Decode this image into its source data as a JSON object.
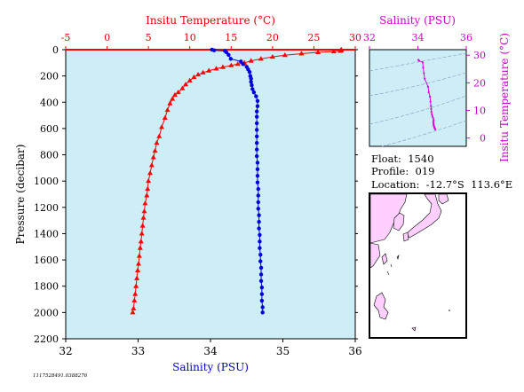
{
  "chart_data": [
    {
      "type": "scatter",
      "title": "",
      "y_axis": {
        "label": "Pressure (decibar)",
        "ticks": [
          0,
          200,
          400,
          600,
          800,
          1000,
          1200,
          1400,
          1600,
          1800,
          2000,
          2200
        ],
        "range": [
          0,
          2200
        ],
        "inverted": true
      },
      "x_axis_bottom": {
        "label": "Salinity (PSU)",
        "ticks": [
          32,
          33,
          34,
          35,
          36
        ],
        "range": [
          32,
          36
        ],
        "color": "#0000cc"
      },
      "x_axis_top": {
        "label": "Insitu Temperature (°C)",
        "ticks": [
          -5,
          0,
          5,
          10,
          15,
          20,
          25,
          30
        ],
        "range": [
          -5,
          30
        ],
        "color": "#dd0000"
      },
      "grid": false,
      "background": "#cdeef7",
      "series": [
        {
          "quantity": "temperature",
          "axis": "top",
          "color": "#ff0000",
          "marker": "triangle",
          "points": [
            [
              28.3,
              0
            ],
            [
              28.3,
              5
            ],
            [
              28.2,
              10
            ],
            [
              27.4,
              14
            ],
            [
              25.5,
              20
            ],
            [
              23.5,
              30
            ],
            [
              21.5,
              42
            ],
            [
              20,
              55
            ],
            [
              18.6,
              70
            ],
            [
              17.4,
              85
            ],
            [
              16.6,
              100
            ],
            [
              15.8,
              110
            ],
            [
              15,
              120
            ],
            [
              14,
              133
            ],
            [
              13.2,
              145
            ],
            [
              12.3,
              160
            ],
            [
              11.6,
              175
            ],
            [
              11,
              190
            ],
            [
              10.5,
              210
            ],
            [
              10,
              235
            ],
            [
              9.5,
              265
            ],
            [
              9.1,
              295
            ],
            [
              8.6,
              325
            ],
            [
              8.2,
              345
            ],
            [
              7.9,
              375
            ],
            [
              7.6,
              410
            ],
            [
              7.3,
              460
            ],
            [
              7,
              520
            ],
            [
              6.6,
              590
            ],
            [
              6.3,
              660
            ],
            [
              6,
              710
            ],
            [
              5.8,
              770
            ],
            [
              5.6,
              820
            ],
            [
              5.4,
              880
            ],
            [
              5.2,
              940
            ],
            [
              5,
              1000
            ],
            [
              4.9,
              1060
            ],
            [
              4.8,
              1110
            ],
            [
              4.6,
              1170
            ],
            [
              4.5,
              1230
            ],
            [
              4.4,
              1280
            ],
            [
              4.3,
              1340
            ],
            [
              4.2,
              1400
            ],
            [
              4.1,
              1460
            ],
            [
              4,
              1510
            ],
            [
              3.9,
              1570
            ],
            [
              3.8,
              1630
            ],
            [
              3.7,
              1680
            ],
            [
              3.6,
              1740
            ],
            [
              3.5,
              1800
            ],
            [
              3.4,
              1860
            ],
            [
              3.3,
              1910
            ],
            [
              3.2,
              1970
            ],
            [
              3.1,
              2000
            ]
          ]
        },
        {
          "quantity": "salinity",
          "axis": "bottom",
          "color": "#0000dd",
          "marker": "circle",
          "points": [
            [
              34.02,
              0
            ],
            [
              34.05,
              5
            ],
            [
              34.2,
              10
            ],
            [
              34.22,
              20
            ],
            [
              34.25,
              40
            ],
            [
              34.28,
              70
            ],
            [
              34.42,
              90
            ],
            [
              34.45,
              110
            ],
            [
              34.5,
              130
            ],
            [
              34.52,
              150
            ],
            [
              34.54,
              170
            ],
            [
              34.55,
              200
            ],
            [
              34.56,
              220
            ],
            [
              34.56,
              245
            ],
            [
              34.57,
              270
            ],
            [
              34.58,
              300
            ],
            [
              34.6,
              325
            ],
            [
              34.63,
              355
            ],
            [
              34.65,
              390
            ],
            [
              34.65,
              430
            ],
            [
              34.64,
              470
            ],
            [
              34.64,
              510
            ],
            [
              34.64,
              560
            ],
            [
              34.64,
              610
            ],
            [
              34.64,
              660
            ],
            [
              34.64,
              710
            ],
            [
              34.64,
              760
            ],
            [
              34.64,
              810
            ],
            [
              34.65,
              860
            ],
            [
              34.65,
              910
            ],
            [
              34.65,
              960
            ],
            [
              34.65,
              1010
            ],
            [
              34.66,
              1060
            ],
            [
              34.66,
              1110
            ],
            [
              34.66,
              1160
            ],
            [
              34.66,
              1210
            ],
            [
              34.67,
              1260
            ],
            [
              34.67,
              1310
            ],
            [
              34.67,
              1360
            ],
            [
              34.68,
              1410
            ],
            [
              34.68,
              1460
            ],
            [
              34.68,
              1510
            ],
            [
              34.69,
              1560
            ],
            [
              34.69,
              1610
            ],
            [
              34.7,
              1660
            ],
            [
              34.7,
              1710
            ],
            [
              34.7,
              1760
            ],
            [
              34.71,
              1810
            ],
            [
              34.71,
              1860
            ],
            [
              34.71,
              1910
            ],
            [
              34.72,
              1960
            ],
            [
              34.72,
              2000
            ]
          ]
        }
      ]
    },
    {
      "type": "scatter",
      "title": "",
      "x_axis": {
        "label": "Salinity (PSU)",
        "ticks": [
          32,
          34,
          36
        ],
        "range": [
          32,
          36
        ],
        "color": "#cc00cc"
      },
      "y_axis": {
        "label": "Insitu Temperature (°C)",
        "ticks": [
          0,
          10,
          20,
          30
        ],
        "range": [
          -3,
          32
        ],
        "color": "#cc00cc"
      },
      "background": "#cdeef7",
      "series": [
        {
          "color": "#dd00dd",
          "marker": "dot",
          "points": [
            [
              34.02,
              28.3
            ],
            [
              34.05,
              28
            ],
            [
              34.2,
              27.4
            ],
            [
              34.22,
              25.5
            ],
            [
              34.25,
              23.5
            ],
            [
              34.28,
              21.5
            ],
            [
              34.42,
              18.6
            ],
            [
              34.45,
              16.6
            ],
            [
              34.5,
              15
            ],
            [
              34.52,
              13.2
            ],
            [
              34.54,
              11.6
            ],
            [
              34.55,
              10.5
            ],
            [
              34.56,
              9.5
            ],
            [
              34.58,
              8.6
            ],
            [
              34.6,
              7.9
            ],
            [
              34.63,
              7.3
            ],
            [
              34.65,
              6.6
            ],
            [
              34.64,
              6
            ],
            [
              34.64,
              5.4
            ],
            [
              34.65,
              4.9
            ],
            [
              34.66,
              4.5
            ],
            [
              34.67,
              4.2
            ],
            [
              34.68,
              3.9
            ],
            [
              34.69,
              3.7
            ],
            [
              34.7,
              3.5
            ],
            [
              34.71,
              3.3
            ],
            [
              34.72,
              3.1
            ]
          ]
        }
      ]
    }
  ],
  "info": {
    "float": "Float:  1540",
    "profile": "Profile:  019",
    "location": "Location:  -12.7°S  113.6°E"
  },
  "footer_id": "1117528491.0388276",
  "colors": {
    "water": "#cdeef7",
    "land": "#ffcfff",
    "temperature": "#ff0000",
    "salinity": "#0000dd",
    "ts": "#cc00cc"
  }
}
